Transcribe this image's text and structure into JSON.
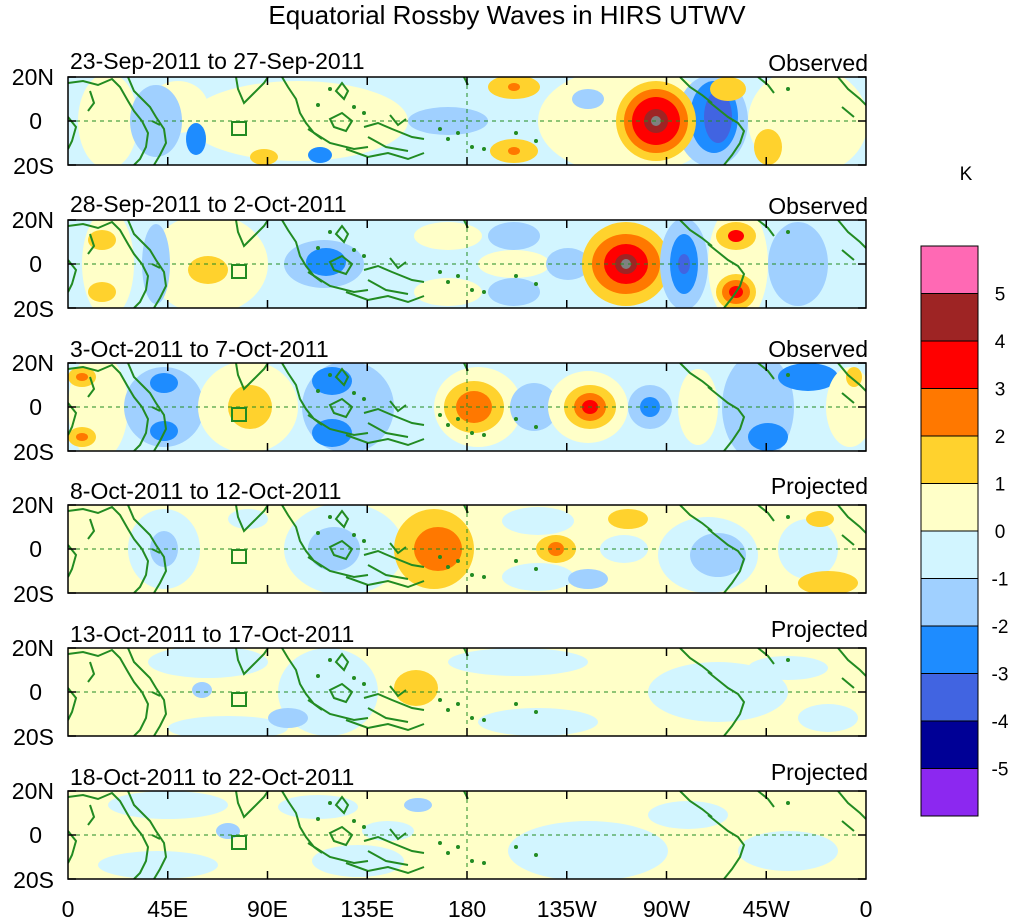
{
  "figure": {
    "title": "Equatorial Rossby Waves in HIRS UTWV",
    "lat_labels": [
      "20N",
      "0",
      "20S"
    ],
    "lon_labels": [
      "0",
      "45E",
      "90E",
      "135E",
      "180",
      "135W",
      "90W",
      "45W",
      "0"
    ],
    "panels": [
      {
        "date_range": "23-Sep-2011 to 27-Sep-2011",
        "status": "Observed"
      },
      {
        "date_range": "28-Sep-2011 to 2-Oct-2011",
        "status": "Observed"
      },
      {
        "date_range": "3-Oct-2011 to 7-Oct-2011",
        "status": "Observed"
      },
      {
        "date_range": "8-Oct-2011 to 12-Oct-2011",
        "status": "Projected"
      },
      {
        "date_range": "13-Oct-2011 to 17-Oct-2011",
        "status": "Projected"
      },
      {
        "date_range": "18-Oct-2011 to 22-Oct-2011",
        "status": "Projected"
      }
    ]
  },
  "colorbar": {
    "unit": "K",
    "levels": [
      "5",
      "4",
      "3",
      "2",
      "1",
      "0",
      "-1",
      "-2",
      "-3",
      "-4",
      "-5"
    ],
    "colors": [
      "#ff69b4",
      "#9e2424",
      "#ff0000",
      "#ff7800",
      "#ffd22d",
      "#ffffc8",
      "#d2f5ff",
      "#a0d0ff",
      "#1e8cff",
      "#4164e1",
      "#000096",
      "#8c28f0"
    ]
  },
  "colors": {
    "coast": "#228b22",
    "guide": "#228b22"
  }
}
